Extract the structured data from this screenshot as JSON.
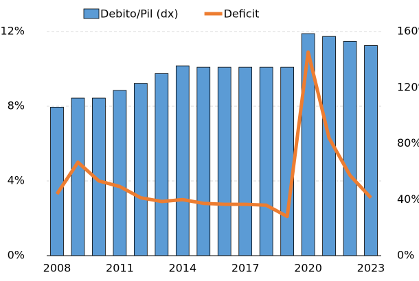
{
  "chart_data": {
    "type": "bar_line",
    "categories": [
      "2008",
      null,
      null,
      "2011",
      null,
      null,
      "2014",
      null,
      null,
      "2017",
      null,
      null,
      "2020",
      null,
      null,
      "2023"
    ],
    "series": [
      {
        "name": "Debito/Pil (dx)",
        "type": "bar",
        "axis": "y2",
        "color": "#5b9bd5",
        "values": [
          106,
          112.5,
          112.5,
          118,
          123,
          130,
          135.5,
          134.5,
          134.5,
          134.5,
          134.5,
          134.5,
          158.5,
          156.5,
          153,
          150
        ]
      },
      {
        "name": "Deficit",
        "type": "line",
        "color": "#ed7d31",
        "values": [
          3.3,
          5.0,
          4.0,
          3.7,
          3.1,
          2.9,
          3.0,
          2.8,
          2.75,
          2.75,
          2.7,
          2.1,
          10.9,
          6.3,
          4.3,
          3.1
        ]
      }
    ],
    "ylim": [
      0,
      12
    ],
    "yticks": [
      {
        "value": 0,
        "label": "0%"
      },
      {
        "value": 4,
        "label": "4%"
      },
      {
        "value": 8,
        "label": "8%"
      },
      {
        "value": 12,
        "label": "12%"
      }
    ],
    "y2lim": [
      0,
      160
    ],
    "y2ticks": [
      {
        "value": 0,
        "label": "0%"
      },
      {
        "value": 40,
        "label": "40%"
      },
      {
        "value": 80,
        "label": "80%"
      },
      {
        "value": 120,
        "label": "120%"
      },
      {
        "value": 160,
        "label": "160%"
      }
    ],
    "grid": true,
    "legend": "top"
  }
}
